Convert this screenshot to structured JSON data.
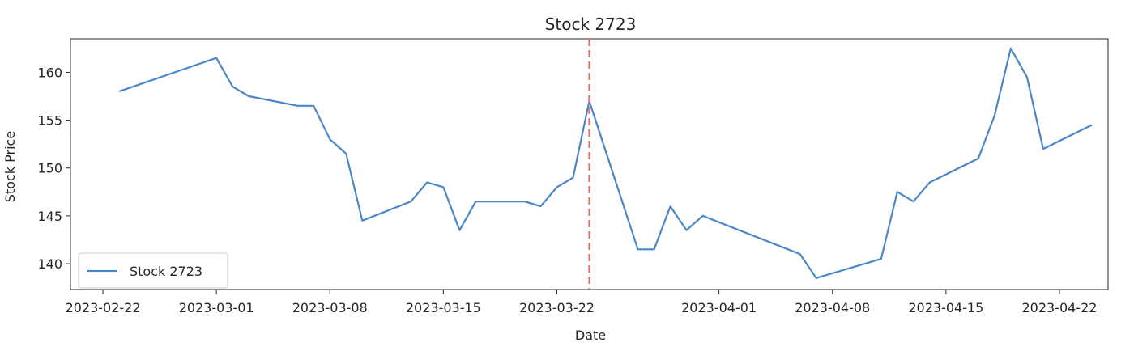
{
  "chart_data": {
    "type": "line",
    "title": "Stock 2723",
    "xlabel": "Date",
    "ylabel": "Stock Price",
    "x_axis_type": "date",
    "xlim": [
      "2023-02-20",
      "2023-04-25"
    ],
    "ylim": [
      137.3,
      163.5
    ],
    "x_ticks": [
      "2023-02-22",
      "2023-03-01",
      "2023-03-08",
      "2023-03-15",
      "2023-03-22",
      "2023-04-01",
      "2023-04-08",
      "2023-04-15",
      "2023-04-22"
    ],
    "y_ticks": [
      140,
      145,
      150,
      155,
      160
    ],
    "grid": false,
    "legend": {
      "position": "lower-left",
      "entries": [
        "Stock 2723"
      ]
    },
    "marker_date": "2023-03-24",
    "colors": {
      "line": "#4a86c8",
      "marker": "#e8706a",
      "axes": "#262626"
    },
    "series": [
      {
        "name": "Stock 2723",
        "x": [
          "2023-02-23",
          "2023-03-01",
          "2023-03-02",
          "2023-03-03",
          "2023-03-06",
          "2023-03-07",
          "2023-03-08",
          "2023-03-09",
          "2023-03-10",
          "2023-03-13",
          "2023-03-14",
          "2023-03-15",
          "2023-03-16",
          "2023-03-17",
          "2023-03-20",
          "2023-03-21",
          "2023-03-22",
          "2023-03-23",
          "2023-03-24",
          "2023-03-27",
          "2023-03-28",
          "2023-03-29",
          "2023-03-30",
          "2023-03-31",
          "2023-04-06",
          "2023-04-07",
          "2023-04-11",
          "2023-04-12",
          "2023-04-13",
          "2023-04-14",
          "2023-04-17",
          "2023-04-18",
          "2023-04-19",
          "2023-04-20",
          "2023-04-21",
          "2023-04-24"
        ],
        "values": [
          158.0,
          161.5,
          158.5,
          157.5,
          156.5,
          156.5,
          153.0,
          151.5,
          144.5,
          146.5,
          148.5,
          148.0,
          143.5,
          146.5,
          146.5,
          146.0,
          148.0,
          149.0,
          157.0,
          141.5,
          141.5,
          146.0,
          143.5,
          145.0,
          141.0,
          138.5,
          140.5,
          147.5,
          146.5,
          148.5,
          151.0,
          155.5,
          162.5,
          159.5,
          152.0,
          154.5
        ]
      }
    ]
  }
}
